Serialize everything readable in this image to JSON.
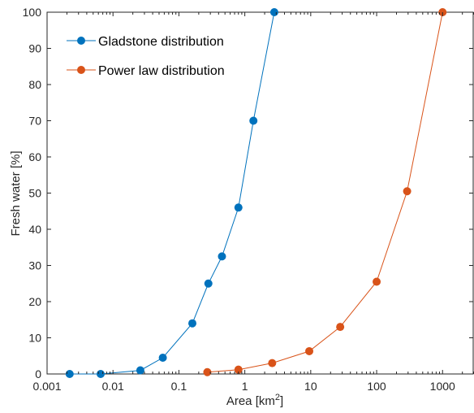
{
  "chart_data": {
    "type": "line",
    "x_scale": "log",
    "xlim": [
      0.001,
      3000
    ],
    "ylim": [
      0,
      100
    ],
    "x_ticks": [
      0.001,
      0.01,
      0.1,
      1,
      10,
      100,
      1000
    ],
    "x_tick_labels": [
      "0.001",
      "0.01",
      "0.1",
      "1",
      "10",
      "100",
      "1000"
    ],
    "y_ticks": [
      0,
      10,
      20,
      30,
      40,
      50,
      60,
      70,
      80,
      90,
      100
    ],
    "y_tick_labels": [
      "0",
      "10",
      "20",
      "30",
      "40",
      "50",
      "60",
      "70",
      "80",
      "90",
      "100"
    ],
    "xlabel": "Area [km",
    "xlabel_superscript": "2",
    "xlabel_suffix": "]",
    "ylabel": "Fresh water [%]",
    "grid": false,
    "legend_position": "top-left",
    "series": [
      {
        "name": "Gladstone distribution",
        "color": "#0072BD",
        "x": [
          0.0022,
          0.0065,
          0.026,
          0.057,
          0.16,
          0.28,
          0.45,
          0.8,
          1.35,
          2.8
        ],
        "y": [
          0,
          0,
          1,
          4.5,
          14,
          25,
          32.5,
          46,
          70,
          100
        ]
      },
      {
        "name": "Power law distribution",
        "color": "#D95319",
        "x": [
          0.27,
          0.8,
          2.6,
          9.5,
          28,
          100,
          290,
          1000
        ],
        "y": [
          0.5,
          1.2,
          3,
          6.3,
          13,
          25.5,
          50.5,
          100
        ]
      }
    ]
  }
}
